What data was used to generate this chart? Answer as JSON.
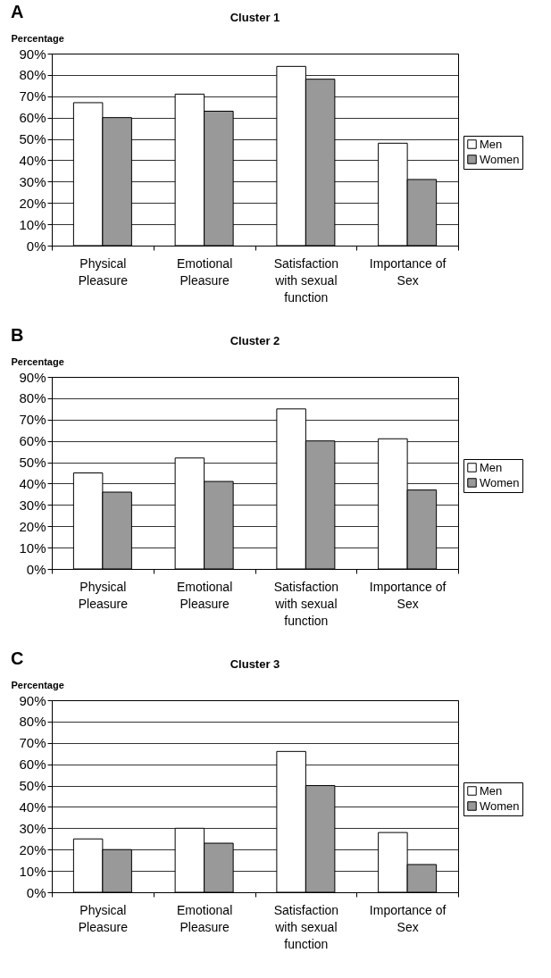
{
  "chart_data": [
    {
      "type": "bar",
      "title": "Cluster 1",
      "ylabel": "Percentage",
      "annotations": [
        "A"
      ],
      "categories": [
        "Physical Pleasure",
        "Emotional Pleasure",
        "Satisfaction with sexual function",
        "Importance of Sex"
      ],
      "series": [
        {
          "name": "Men",
          "color": "#ffffff",
          "values": [
            67,
            71,
            84,
            48
          ]
        },
        {
          "name": "Women",
          "color": "#999999",
          "values": [
            60,
            63,
            78,
            31
          ]
        }
      ],
      "ylim": [
        0,
        90
      ],
      "yticks": [
        {
          "value": 0,
          "label": "0%"
        },
        {
          "value": 10,
          "label": "10%"
        },
        {
          "value": 20,
          "label": "20%"
        },
        {
          "value": 30,
          "label": "30%"
        },
        {
          "value": 40,
          "label": "40%"
        },
        {
          "value": 50,
          "label": "50%"
        },
        {
          "value": 60,
          "label": "60%"
        },
        {
          "value": 70,
          "label": "70%"
        },
        {
          "value": 80,
          "label": "80%"
        },
        {
          "value": 90,
          "label": "90%"
        }
      ],
      "grid": "y",
      "legend": "right"
    },
    {
      "type": "bar",
      "title": "Cluster 2",
      "ylabel": "Percentage",
      "annotations": [
        "B"
      ],
      "categories": [
        "Physical Pleasure",
        "Emotional Pleasure",
        "Satisfaction with sexual function",
        "Importance of Sex"
      ],
      "series": [
        {
          "name": "Men",
          "color": "#ffffff",
          "values": [
            45,
            52,
            75,
            61
          ]
        },
        {
          "name": "Women",
          "color": "#999999",
          "values": [
            36,
            41,
            60,
            37
          ]
        }
      ],
      "ylim": [
        0,
        90
      ],
      "yticks": [
        {
          "value": 0,
          "label": "0%"
        },
        {
          "value": 10,
          "label": "10%"
        },
        {
          "value": 20,
          "label": "20%"
        },
        {
          "value": 30,
          "label": "30%"
        },
        {
          "value": 40,
          "label": "40%"
        },
        {
          "value": 50,
          "label": "50%"
        },
        {
          "value": 60,
          "label": "60%"
        },
        {
          "value": 70,
          "label": "70%"
        },
        {
          "value": 80,
          "label": "80%"
        },
        {
          "value": 90,
          "label": "90%"
        }
      ],
      "grid": "y",
      "legend": "right"
    },
    {
      "type": "bar",
      "title": "Cluster 3",
      "ylabel": "Percentage",
      "annotations": [
        "C"
      ],
      "categories": [
        "Physical Pleasure",
        "Emotional Pleasure",
        "Satisfaction with sexual function",
        "Importance of Sex"
      ],
      "series": [
        {
          "name": "Men",
          "color": "#ffffff",
          "values": [
            25,
            30,
            66,
            28
          ]
        },
        {
          "name": "Women",
          "color": "#999999",
          "values": [
            20,
            23,
            50,
            13
          ]
        }
      ],
      "ylim": [
        0,
        90
      ],
      "yticks": [
        {
          "value": 0,
          "label": "0%"
        },
        {
          "value": 10,
          "label": "10%"
        },
        {
          "value": 20,
          "label": "20%"
        },
        {
          "value": 30,
          "label": "30%"
        },
        {
          "value": 40,
          "label": "40%"
        },
        {
          "value": 50,
          "label": "50%"
        },
        {
          "value": 60,
          "label": "60%"
        },
        {
          "value": 70,
          "label": "70%"
        },
        {
          "value": 80,
          "label": "80%"
        },
        {
          "value": 90,
          "label": "90%"
        }
      ],
      "grid": "y",
      "legend": "right"
    }
  ]
}
